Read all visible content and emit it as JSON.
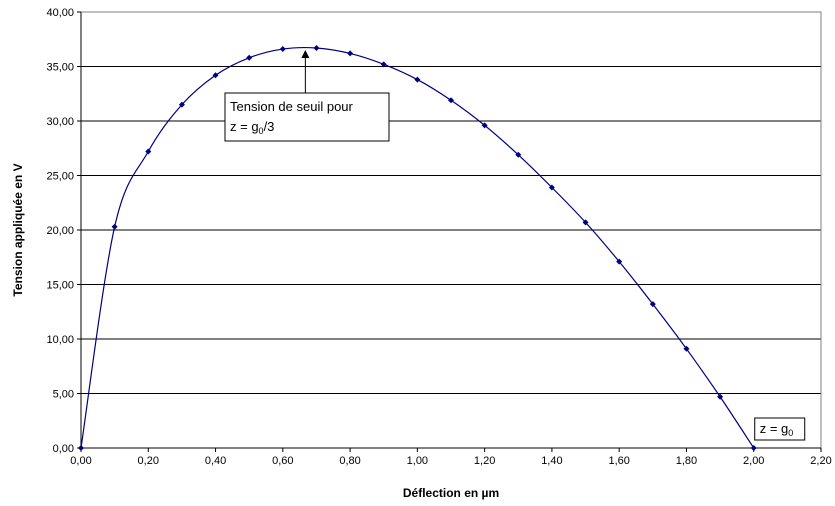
{
  "chart_data": {
    "type": "line",
    "xlabel": "Déflection en µm",
    "ylabel": "Tension appliquée en V",
    "xlim": [
      0,
      2.2
    ],
    "ylim": [
      0,
      40
    ],
    "grid": "horizontal",
    "x_tick_labels": [
      "0,00",
      "0,20",
      "0,40",
      "0,60",
      "0,80",
      "1,00",
      "1,20",
      "1,40",
      "1,60",
      "1,80",
      "2,00",
      "2,20"
    ],
    "y_tick_labels": [
      "0,00",
      "5,00",
      "10,00",
      "15,00",
      "20,00",
      "25,00",
      "30,00",
      "35,00",
      "40,00"
    ],
    "series": [
      {
        "color": "#000080",
        "marker": "diamond",
        "x": [
          0.0,
          0.1,
          0.2,
          0.3,
          0.4,
          0.5,
          0.6,
          0.7,
          0.8,
          0.9,
          1.0,
          1.1,
          1.2,
          1.3,
          1.4,
          1.5,
          1.6,
          1.7,
          1.8,
          1.9,
          2.0
        ],
        "y": [
          0.0,
          20.3,
          27.2,
          31.5,
          34.2,
          35.8,
          36.6,
          36.7,
          36.2,
          35.2,
          33.8,
          31.9,
          29.6,
          26.9,
          23.9,
          20.7,
          17.1,
          13.2,
          9.1,
          4.7,
          0.0
        ]
      }
    ],
    "annotations": [
      {
        "lines": [
          "Tension de seuil pour",
          "z = g",
          "0",
          "/3"
        ],
        "x": 0.667,
        "y": 36.7
      },
      {
        "lines": [
          "z = g",
          "0"
        ],
        "x": 2.0,
        "y": 0.0
      }
    ]
  }
}
